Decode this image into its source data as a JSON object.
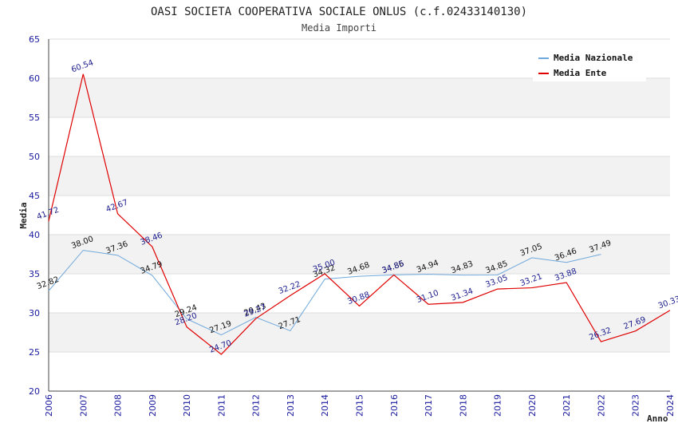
{
  "chart_data": {
    "type": "line",
    "title": "OASI SOCIETA COOPERATIVA SOCIALE ONLUS (c.f.02433140130)",
    "subtitle": "Media Importi",
    "xlabel": "Anno",
    "ylabel": "Media",
    "ylim": [
      20,
      65
    ],
    "yticks": [
      20,
      25,
      30,
      35,
      40,
      45,
      50,
      55,
      60,
      65
    ],
    "grid": true,
    "legend_position": "top-right",
    "x": [
      "2006",
      "2007",
      "2008",
      "2009",
      "2010",
      "2011",
      "2012",
      "2013",
      "2014",
      "2015",
      "2016",
      "2017",
      "2018",
      "2019",
      "2020",
      "2021",
      "2022",
      "2023",
      "2024"
    ],
    "series": [
      {
        "name": "Media Nazionale",
        "color": "#6fa8dc",
        "label_color": "#111111",
        "values": [
          32.82,
          38.0,
          37.36,
          34.79,
          29.24,
          27.19,
          29.43,
          27.71,
          34.32,
          34.68,
          34.86,
          34.94,
          34.83,
          34.85,
          37.05,
          36.46,
          37.49,
          null,
          null
        ],
        "labels": [
          "32.82",
          "38.00",
          "37.36",
          "34.79",
          "29.24",
          "27.19",
          "29.43",
          "27.71",
          "34.32",
          "34.68",
          "34.86",
          "34.94",
          "34.83",
          "34.85",
          "37.05",
          "36.46",
          "37.49",
          "",
          ""
        ]
      },
      {
        "name": "Media Ente",
        "color": "#e00000",
        "label_color": "#1a1a8c",
        "values": [
          41.72,
          60.54,
          42.67,
          38.46,
          28.2,
          24.7,
          29.27,
          32.22,
          35.0,
          30.88,
          34.85,
          31.1,
          31.34,
          33.05,
          33.21,
          33.88,
          26.32,
          27.69,
          30.33
        ],
        "labels": [
          "41.72",
          "60.54",
          "42.67",
          "38.46",
          "28.20",
          "24.70",
          "29.27",
          "32.22",
          "35.00",
          "30.88",
          "34.85",
          "31.10",
          "31.34",
          "33.05",
          "33.21",
          "33.88",
          "26.32",
          "27.69",
          "30.33"
        ]
      }
    ],
    "colors": {
      "band_light": "#ffffff",
      "band_dark": "#f2f2f2",
      "axis": "#444444",
      "tick_text": "#1a1aa0"
    }
  }
}
